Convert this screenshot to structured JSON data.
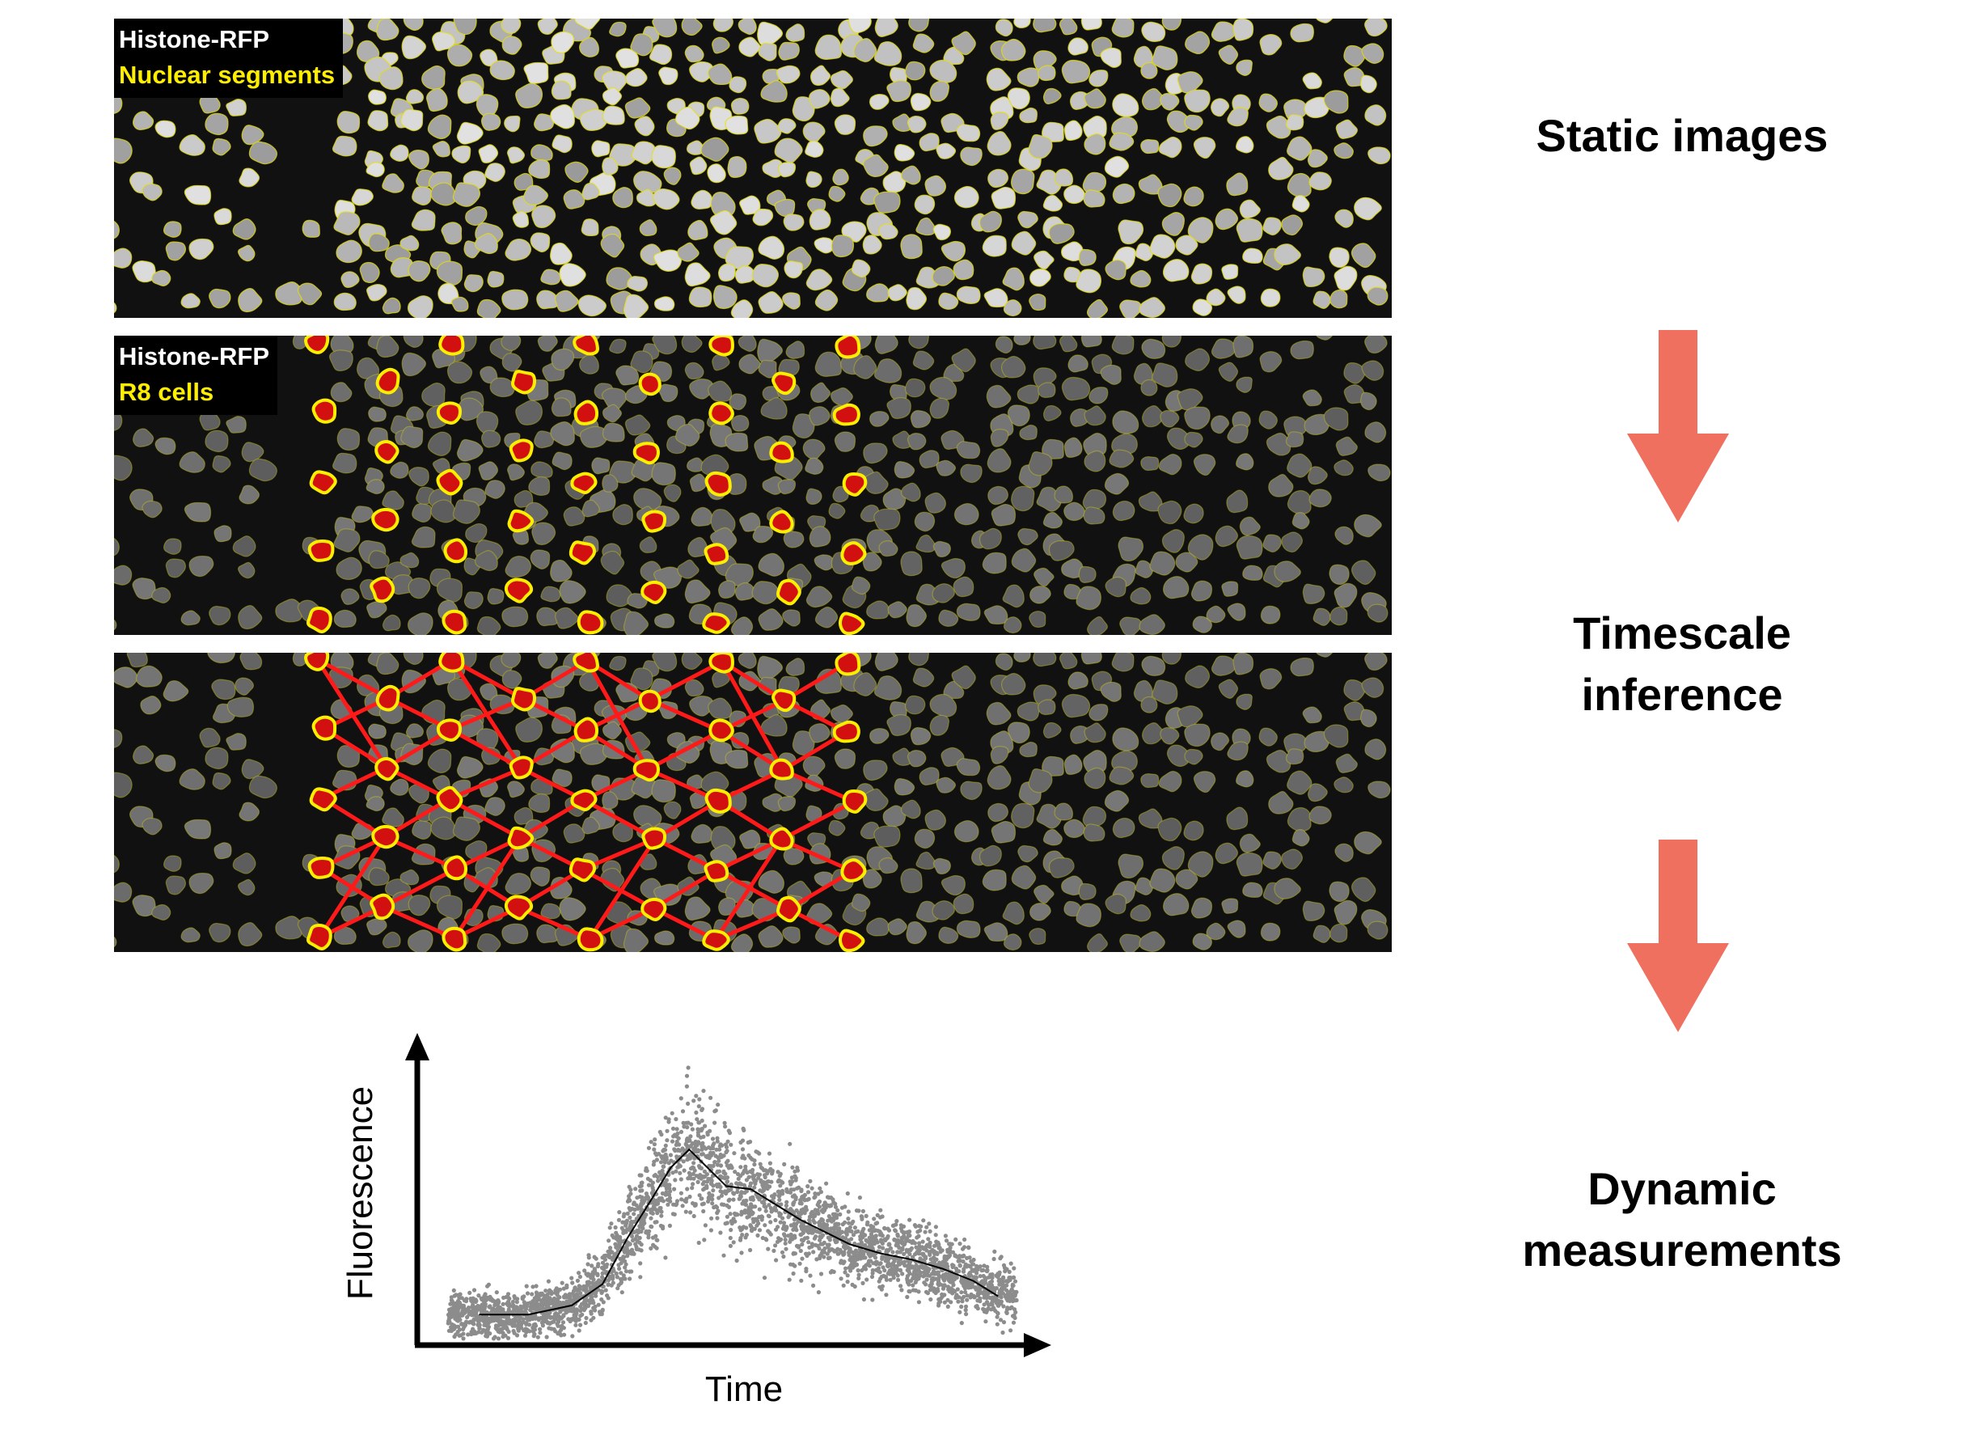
{
  "panels": [
    {
      "label_1": "Histone-RFP",
      "label_2": "Nuclear segments"
    },
    {
      "label_1": "Histone-RFP",
      "label_2": "R8 cells"
    },
    {
      "label_1": "",
      "label_2": ""
    }
  ],
  "stages": {
    "static_images": "Static images",
    "timescale_inference": "Timescale inference",
    "dynamic_measurements": "Dynamic measurements"
  },
  "colors": {
    "panel_background": "#0d0d0d",
    "nucleus_fill": "#8a8a8a",
    "segment_outline": "#e8e000",
    "r8_fill": "#d21010",
    "r8_outline": "#ffee00",
    "lattice_line": "#ff1a1a",
    "arrow": "#f07060",
    "scatter_points": "#8c8c8c",
    "trend_line": "#000000"
  },
  "icons": {
    "stage_arrow": "arrow-down-icon"
  },
  "chart_data": {
    "type": "scatter",
    "xlabel": "Time",
    "ylabel": "Fluorescence",
    "title": "",
    "axis_ticks": false,
    "x_range": [
      0,
      1
    ],
    "y_range": [
      0,
      1
    ],
    "trend": {
      "x": [
        0.1,
        0.18,
        0.25,
        0.3,
        0.34,
        0.38,
        0.41,
        0.44,
        0.47,
        0.5,
        0.54,
        0.58,
        0.62,
        0.66,
        0.7,
        0.75,
        0.8,
        0.85,
        0.9,
        0.94
      ],
      "y": [
        0.1,
        0.1,
        0.13,
        0.2,
        0.35,
        0.48,
        0.58,
        0.64,
        0.58,
        0.52,
        0.51,
        0.46,
        0.41,
        0.37,
        0.33,
        0.3,
        0.28,
        0.25,
        0.21,
        0.16
      ]
    },
    "scatter": {
      "point_count": 3200,
      "x_extent": [
        0.05,
        0.97
      ],
      "description_of_spread": "dense cloud following the trend, widest near the peak"
    }
  }
}
